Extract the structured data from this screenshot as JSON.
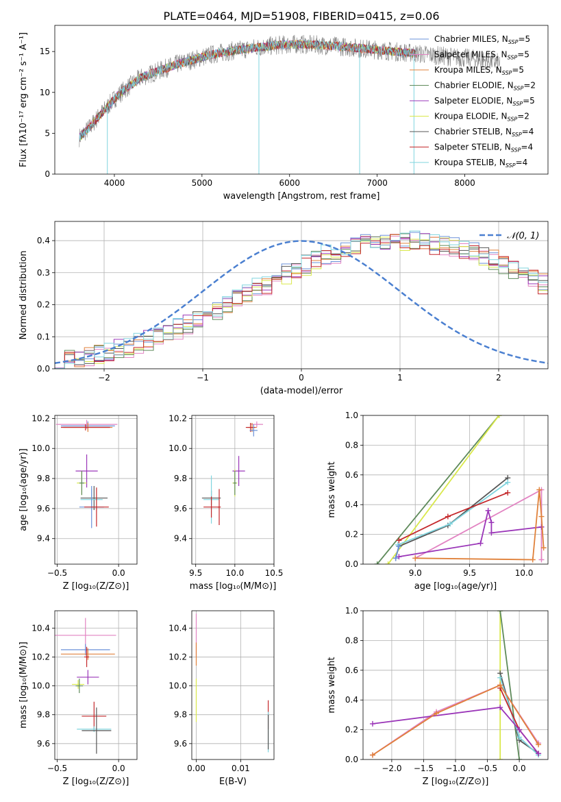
{
  "figure": {
    "title": "PLATE=0464, MJD=51908, FIBERID=0415, z=0.06"
  },
  "colors": {
    "c1": "#6a90d8",
    "c2": "#e283c2",
    "c3": "#e0813a",
    "c4": "#5e8a5a",
    "c5": "#9a35b8",
    "c6": "#d9e84a",
    "c7": "#555555",
    "c8": "#c4272a",
    "c9": "#7fd4de",
    "gauss": "#4a7fd0",
    "grid": "#b0b0b0",
    "spectrum": "#808080"
  },
  "chart_data": [
    {
      "id": "spectrum",
      "type": "line",
      "xlabel": "wavelength [Angstrom, rest frame]",
      "ylabel": "Flux [fλ10⁻¹⁷ erg cm⁻² s⁻¹ A⁻¹]",
      "xlim": [
        3320,
        8950
      ],
      "ylim": [
        0,
        18.2
      ],
      "xticks": [
        4000,
        5000,
        6000,
        7000,
        8000
      ],
      "yticks": [
        0,
        5,
        10,
        15
      ],
      "grid": false,
      "legend_position": "top-right",
      "continuum_x": [
        3600,
        3700,
        3800,
        3900,
        4000,
        4100,
        4200,
        4300,
        4500,
        4700,
        4900,
        5100,
        5300,
        5500,
        5700,
        5900,
        6100,
        6300,
        6500,
        6700,
        6900,
        7100,
        7300,
        7500,
        7700,
        7900,
        8100,
        8300,
        8400
      ],
      "continuum_y": [
        4.5,
        5.5,
        6.8,
        8.0,
        9.2,
        10.2,
        11.0,
        11.8,
        12.6,
        13.4,
        14.0,
        14.6,
        15.0,
        15.3,
        15.6,
        15.8,
        15.9,
        15.8,
        15.7,
        15.5,
        15.3,
        15.1,
        14.9,
        14.7,
        14.5,
        14.3,
        14.1,
        13.8,
        13.6
      ],
      "model_end_x": 7450,
      "obs_end_x": 8400,
      "spikes": [
        {
          "x": 3920,
          "y": 0
        },
        {
          "x": 5650,
          "y": 0
        },
        {
          "x": 6800,
          "y": 0
        },
        {
          "x": 7420,
          "y": 0
        }
      ],
      "series": [
        {
          "name": "Chabrier MILES, N_SSP=5",
          "label": "Chabrier MILES, N",
          "sub": "SSP",
          "value": "=5",
          "color": "c1"
        },
        {
          "name": "Salpeter MILES, N_SSP=5",
          "label": "Salpeter MILES, N",
          "sub": "SSP",
          "value": "=5",
          "color": "c2"
        },
        {
          "name": "Kroupa MILES, N_SSP=5",
          "label": "Kroupa MILES, N",
          "sub": "SSP",
          "value": "=5",
          "color": "c3"
        },
        {
          "name": "Chabrier ELODIE, N_SSP=2",
          "label": "Chabrier ELODIE, N",
          "sub": "SSP",
          "value": "=2",
          "color": "c4"
        },
        {
          "name": "Salpeter ELODIE, N_SSP=5",
          "label": "Salpeter ELODIE, N",
          "sub": "SSP",
          "value": "=5",
          "color": "c5"
        },
        {
          "name": "Kroupa ELODIE, N_SSP=2",
          "label": "Kroupa ELODIE, N",
          "sub": "SSP",
          "value": "=2",
          "color": "c6"
        },
        {
          "name": "Chabrier STELIB, N_SSP=4",
          "label": "Chabrier STELIB, N",
          "sub": "SSP",
          "value": "=4",
          "color": "c7"
        },
        {
          "name": "Salpeter STELIB, N_SSP=4",
          "label": "Salpeter STELIB, N",
          "sub": "SSP",
          "value": "=4",
          "color": "c8"
        },
        {
          "name": "Kroupa STELIB, N_SSP=4",
          "label": "Kroupa STELIB, N",
          "sub": "SSP",
          "value": "=4",
          "color": "c9"
        }
      ]
    },
    {
      "id": "residuals",
      "type": "histogram",
      "xlabel": "(data-model)/error",
      "ylabel": "Normed distribution",
      "xlim": [
        -2.5,
        2.5
      ],
      "ylim": [
        0,
        0.46
      ],
      "xticks": [
        -2,
        -1,
        0,
        1,
        2
      ],
      "yticks": [
        0,
        0.1,
        0.2,
        0.3,
        0.4
      ],
      "grid": true,
      "bin_width": 0.1,
      "bin_start": -2.5,
      "reference_curve": {
        "label": "𝒩(0, 1)",
        "mean": 0,
        "sigma": 1,
        "style": "dashed"
      },
      "legend_position": "top-right",
      "series_colors": [
        "c1",
        "c2",
        "c3",
        "c4",
        "c5",
        "c6",
        "c7",
        "c8",
        "c9"
      ],
      "envelope": [
        0.025,
        0.03,
        0.033,
        0.038,
        0.045,
        0.05,
        0.058,
        0.065,
        0.075,
        0.085,
        0.098,
        0.11,
        0.125,
        0.14,
        0.155,
        0.17,
        0.185,
        0.2,
        0.218,
        0.235,
        0.25,
        0.265,
        0.28,
        0.295,
        0.31,
        0.325,
        0.34,
        0.352,
        0.36,
        0.37,
        0.378,
        0.386,
        0.39,
        0.395,
        0.398,
        0.4,
        0.398,
        0.395,
        0.39,
        0.385,
        0.378,
        0.37,
        0.36,
        0.35,
        0.34,
        0.326,
        0.313,
        0.298,
        0.283,
        0.268,
        0.252,
        0.236,
        0.22,
        0.205,
        0.19,
        0.175,
        0.16,
        0.146,
        0.133,
        0.12,
        0.108,
        0.097,
        0.087,
        0.078,
        0.069,
        0.061,
        0.054,
        0.048,
        0.042,
        0.037,
        0.032,
        0.028,
        0.025,
        0.022,
        0.02,
        0.018,
        0.017,
        0.016,
        0.015,
        0.015
      ],
      "jitter": [
        0.02,
        -0.03,
        0.015,
        -0.01,
        0.035,
        -0.02,
        0.01,
        -0.025,
        0.03
      ]
    },
    {
      "id": "age-vs-Z",
      "type": "errorbar",
      "xlabel": "Z [log₁₀(Z/Z⊙)]",
      "ylabel": "age  [log₁₀(age/yr)]",
      "xlim": [
        -0.52,
        0.15
      ],
      "ylim": [
        9.23,
        10.22
      ],
      "xticks": [
        -0.5,
        0.0
      ],
      "xticklabels": [
        "−0.5",
        "0.0"
      ],
      "yticks": [
        9.4,
        9.6,
        9.8,
        10.0,
        10.2
      ],
      "grid": true,
      "points": [
        {
          "x": -0.26,
          "y": 10.16,
          "xerr": 0.25,
          "yerr": 0.03,
          "color": "c2"
        },
        {
          "x": -0.25,
          "y": 10.15,
          "xerr": 0.22,
          "yerr": 0.03,
          "color": "c1"
        },
        {
          "x": -0.25,
          "y": 10.14,
          "xerr": 0.2,
          "yerr": 0.03,
          "color": "c3"
        },
        {
          "x": -0.27,
          "y": 10.14,
          "xerr": 0.2,
          "yerr": 0.02,
          "color": "c8"
        },
        {
          "x": -0.26,
          "y": 9.85,
          "xerr": 0.09,
          "yerr": 0.11,
          "color": "c5"
        },
        {
          "x": -0.3,
          "y": 9.77,
          "xerr": 0.04,
          "yerr": 0.08,
          "color": "c6"
        },
        {
          "x": -0.3,
          "y": 9.77,
          "xerr": 0.02,
          "yerr": 0.08,
          "color": "c4"
        },
        {
          "x": -0.2,
          "y": 9.67,
          "xerr": 0.11,
          "yerr": 0.08,
          "color": "c7"
        },
        {
          "x": -0.22,
          "y": 9.66,
          "xerr": 0.09,
          "yerr": 0.07,
          "color": "c9"
        },
        {
          "x": -0.22,
          "y": 9.61,
          "xerr": 0.1,
          "yerr": 0.14,
          "color": "c1"
        },
        {
          "x": -0.18,
          "y": 9.61,
          "xerr": 0.1,
          "yerr": 0.13,
          "color": "c8"
        }
      ]
    },
    {
      "id": "age-vs-mass",
      "type": "errorbar",
      "xlabel": "mass [log₁₀(M/M⊙)]",
      "ylabel": "",
      "xlim": [
        9.45,
        10.5
      ],
      "ylim": [
        9.23,
        10.22
      ],
      "xticks": [
        9.5,
        10.0,
        10.5
      ],
      "yticks": [
        9.4,
        9.6,
        9.8,
        10.0,
        10.2
      ],
      "grid": true,
      "points": [
        {
          "x": 10.28,
          "y": 10.16,
          "xerr": 0.08,
          "yerr": 0.02,
          "color": "c2"
        },
        {
          "x": 10.22,
          "y": 10.14,
          "xerr": 0.06,
          "yerr": 0.03,
          "color": "c3"
        },
        {
          "x": 10.2,
          "y": 10.14,
          "xerr": 0.06,
          "yerr": 0.03,
          "color": "c8"
        },
        {
          "x": 10.24,
          "y": 10.12,
          "xerr": 0.05,
          "yerr": 0.04,
          "color": "c1"
        },
        {
          "x": 10.05,
          "y": 9.85,
          "xerr": 0.08,
          "yerr": 0.1,
          "color": "c5"
        },
        {
          "x": 10.0,
          "y": 9.77,
          "xerr": 0.03,
          "yerr": 0.09,
          "color": "c6"
        },
        {
          "x": 10.0,
          "y": 9.77,
          "xerr": 0.02,
          "yerr": 0.08,
          "color": "c4"
        },
        {
          "x": 9.7,
          "y": 9.67,
          "xerr": 0.12,
          "yerr": 0.05,
          "color": "c7"
        },
        {
          "x": 9.7,
          "y": 9.66,
          "xerr": 0.1,
          "yerr": 0.16,
          "color": "c9"
        },
        {
          "x": 9.7,
          "y": 9.61,
          "xerr": 0.1,
          "yerr": 0.07,
          "color": "c8"
        },
        {
          "x": 9.8,
          "y": 9.61,
          "xerr": 0.02,
          "yerr": 0.12,
          "color": "c8"
        }
      ]
    },
    {
      "id": "weight-vs-age",
      "type": "line",
      "xlabel": "age  [log₁₀(age/yr)]",
      "ylabel": "mass weight",
      "xlim": [
        8.52,
        10.22
      ],
      "ylim": [
        0,
        1.0
      ],
      "xticks": [
        9.0,
        9.5,
        10.0
      ],
      "yticks": [
        0.0,
        0.2,
        0.4,
        0.6,
        0.8,
        1.0
      ],
      "grid": true,
      "series": [
        {
          "color": "c4",
          "x": [
            8.65,
            9.77
          ],
          "y": [
            0.0,
            1.0
          ]
        },
        {
          "color": "c6",
          "x": [
            8.75,
            9.77
          ],
          "y": [
            0.0,
            1.0
          ]
        },
        {
          "color": "c7",
          "x": [
            8.82,
            8.85,
            9.3,
            9.85
          ],
          "y": [
            0.04,
            0.12,
            0.26,
            0.58
          ]
        },
        {
          "color": "c9",
          "x": [
            8.84,
            9.32,
            9.85
          ],
          "y": [
            0.13,
            0.27,
            0.55
          ]
        },
        {
          "color": "c8",
          "x": [
            8.85,
            9.3,
            9.85
          ],
          "y": [
            0.16,
            0.32,
            0.48
          ]
        },
        {
          "color": "c2",
          "x": [
            9.0,
            10.16,
            10.16
          ],
          "y": [
            0.04,
            0.5,
            0.03
          ]
        },
        {
          "color": "c5",
          "x": [
            8.85,
            9.6,
            9.67,
            9.7,
            9.7,
            10.16
          ],
          "y": [
            0.05,
            0.14,
            0.36,
            0.28,
            0.21,
            0.25
          ]
        },
        {
          "color": "c3",
          "x": [
            9.0,
            10.08,
            10.14,
            10.16,
            10.18
          ],
          "y": [
            0.04,
            0.03,
            0.5,
            0.32,
            0.11
          ]
        },
        {
          "color": "c1",
          "x": [
            8.82,
            8.85
          ],
          "y": [
            0.04,
            0.12
          ]
        }
      ]
    },
    {
      "id": "mass-vs-Z",
      "type": "errorbar",
      "xlabel": "Z [log₁₀(Z/Z⊙)]",
      "ylabel": "mass [log₁₀(M/M⊙)]",
      "xlim": [
        -0.52,
        0.15
      ],
      "ylim": [
        9.49,
        10.52
      ],
      "xticks": [
        -0.5,
        0.0
      ],
      "xticklabels": [
        "−0.5",
        "0.0"
      ],
      "yticks": [
        9.6,
        9.8,
        10.0,
        10.2,
        10.4
      ],
      "grid": true,
      "points": [
        {
          "x": -0.27,
          "y": 10.35,
          "xerr": 0.25,
          "yerr": 0.12,
          "color": "c2"
        },
        {
          "x": -0.27,
          "y": 10.25,
          "xerr": 0.2,
          "yerr": 0.04,
          "color": "c1"
        },
        {
          "x": -0.25,
          "y": 10.22,
          "xerr": 0.22,
          "yerr": 0.04,
          "color": "c3"
        },
        {
          "x": -0.26,
          "y": 10.2,
          "xerr": 0.02,
          "yerr": 0.07,
          "color": "c8"
        },
        {
          "x": -0.25,
          "y": 10.06,
          "xerr": 0.09,
          "yerr": 0.05,
          "color": "c5"
        },
        {
          "x": -0.33,
          "y": 10.01,
          "xerr": 0.05,
          "yerr": 0.03,
          "color": "c6"
        },
        {
          "x": -0.32,
          "y": 10.0,
          "xerr": 0.03,
          "yerr": 0.05,
          "color": "c4"
        },
        {
          "x": -0.2,
          "y": 9.79,
          "xerr": 0.1,
          "yerr": 0.1,
          "color": "c8"
        },
        {
          "x": -0.2,
          "y": 9.7,
          "xerr": 0.14,
          "yerr": 0.02,
          "color": "c9"
        },
        {
          "x": -0.18,
          "y": 9.69,
          "xerr": 0.12,
          "yerr": 0.16,
          "color": "c7"
        }
      ]
    },
    {
      "id": "mass-vs-EBV",
      "type": "errorbar",
      "xlabel": "E(B-V)",
      "ylabel": "",
      "xlim": [
        -0.001,
        0.0175
      ],
      "ylim": [
        9.49,
        10.52
      ],
      "xticks": [
        0.0,
        0.01
      ],
      "xticklabels": [
        "0.00",
        "0.01"
      ],
      "yticks": [
        9.6,
        9.8,
        10.0,
        10.2,
        10.4
      ],
      "grid": true,
      "points": [
        {
          "x": 0.0,
          "y": 10.35,
          "xerr": 0,
          "yerr": 0.15,
          "color": "c2"
        },
        {
          "x": 0.0,
          "y": 10.22,
          "xerr": 0,
          "yerr": 0.08,
          "color": "c3"
        },
        {
          "x": 0.0,
          "y": 9.9,
          "xerr": 0,
          "yerr": 0.15,
          "color": "c6"
        },
        {
          "x": 0.0162,
          "y": 9.8,
          "xerr": 0,
          "yerr": 0.1,
          "color": "c8"
        },
        {
          "x": 0.0162,
          "y": 9.68,
          "xerr": 0,
          "yerr": 0.14,
          "color": "c9"
        },
        {
          "x": 0.0162,
          "y": 9.68,
          "xerr": 0,
          "yerr": 0.12,
          "color": "c7"
        }
      ]
    },
    {
      "id": "weight-vs-Z",
      "type": "line",
      "xlabel": "Z [log₁₀(Z/Z⊙)]",
      "ylabel": "mass weight",
      "xlim": [
        -2.45,
        0.45
      ],
      "ylim": [
        0,
        1.0
      ],
      "xticks": [
        -2.0,
        -1.5,
        -1.0,
        -0.5,
        0.0
      ],
      "xticklabels": [
        "−2.0",
        "−1.5",
        "−1.0",
        "−0.5",
        "0.0"
      ],
      "yticks": [
        0.0,
        0.2,
        0.4,
        0.6,
        0.8,
        1.0
      ],
      "grid": true,
      "series": [
        {
          "color": "c6",
          "x": [
            -0.3,
            -0.3
          ],
          "y": [
            0.0,
            1.0
          ]
        },
        {
          "color": "c4",
          "x": [
            -0.3,
            0.0
          ],
          "y": [
            1.0,
            0.0
          ]
        },
        {
          "color": "c7",
          "x": [
            -0.3,
            0.0,
            0.3
          ],
          "y": [
            0.58,
            0.13,
            0.04
          ]
        },
        {
          "color": "c9",
          "x": [
            -0.3,
            0.0,
            0.3
          ],
          "y": [
            0.55,
            0.15,
            0.03
          ]
        },
        {
          "color": "c8",
          "x": [
            -0.3,
            0.0,
            0.3
          ],
          "y": [
            0.48,
            0.2,
            0.04
          ]
        },
        {
          "color": "c2",
          "x": [
            -2.3,
            -1.3,
            -0.3,
            0.3
          ],
          "y": [
            0.03,
            0.32,
            0.5,
            0.11
          ]
        },
        {
          "color": "c5",
          "x": [
            -2.3,
            -0.3,
            0.0,
            0.3
          ],
          "y": [
            0.24,
            0.35,
            0.2,
            0.04
          ]
        },
        {
          "color": "c3",
          "x": [
            -2.3,
            -1.3,
            -0.3,
            0.3
          ],
          "y": [
            0.03,
            0.31,
            0.5,
            0.1
          ]
        }
      ]
    }
  ]
}
